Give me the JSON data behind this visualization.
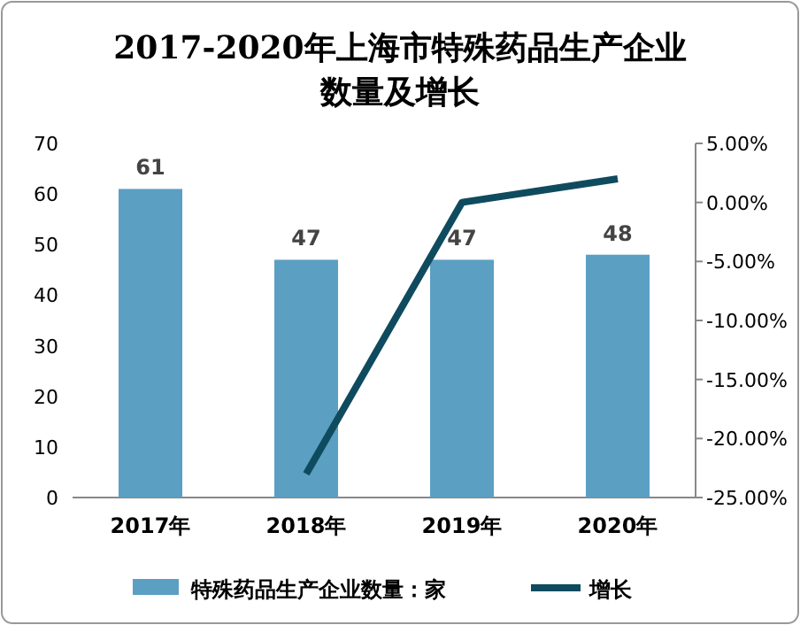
{
  "chart_data": {
    "type": "bar",
    "title": "2017-2020年上海市特殊药品生产企业数量及增长",
    "categories": [
      "2017年",
      "2018年",
      "2019年",
      "2020年"
    ],
    "series": [
      {
        "name": "特殊药品生产企业数量：家",
        "color": "#5b9fc2",
        "values": [
          61,
          47,
          47,
          48
        ],
        "value_labels": [
          "61",
          "47",
          "47",
          "48"
        ]
      },
      {
        "name": "增长",
        "type": "line",
        "axis": "y2",
        "color": "#0f4b5e",
        "values": [
          null,
          -23,
          0,
          2
        ]
      }
    ],
    "ylim": [
      0,
      70
    ],
    "yticks": [
      0,
      10,
      20,
      30,
      40,
      50,
      60,
      70
    ],
    "y2lim": [
      -25,
      5
    ],
    "y2ticks": [
      {
        "value": -25,
        "label": "-25.00%"
      },
      {
        "value": -20,
        "label": "-20.00%"
      },
      {
        "value": -15,
        "label": "-15.00%"
      },
      {
        "value": -10,
        "label": "-10.00%"
      },
      {
        "value": -5,
        "label": "-5.00%"
      },
      {
        "value": 0,
        "label": "0.00%"
      },
      {
        "value": 5,
        "label": "5.00%"
      }
    ],
    "grid": false,
    "legend": "bottom",
    "marker": "none",
    "line_style": "solid"
  }
}
